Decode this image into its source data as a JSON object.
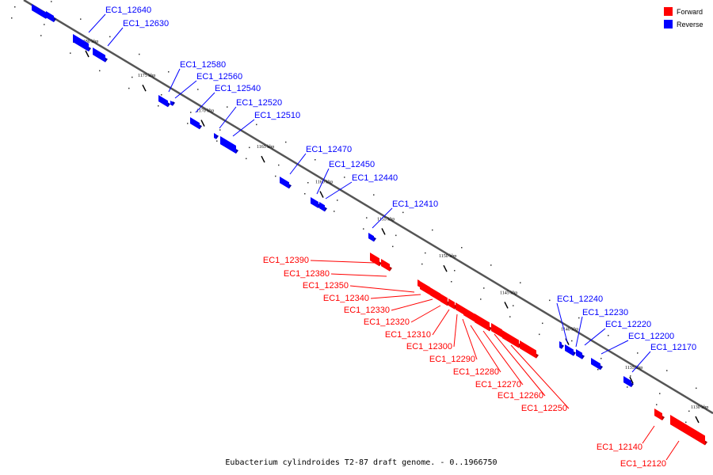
{
  "caption": "Eubacterium cylindroides T2-87 draft genome. - 0..1966750",
  "legend": [
    {
      "label": "Forward",
      "color": "#ff0000"
    },
    {
      "label": "Reverse",
      "color": "#0000ff"
    }
  ],
  "colors": {
    "forward": "#ff0000",
    "reverse": "#0000ff",
    "backbone": "#555555"
  },
  "ticks": [
    "1180 kbp",
    "1175 kbp",
    "1170 kbp",
    "1165 kbp",
    "1160 kbp",
    "1155 kbp",
    "1150 kbp",
    "1145 kbp",
    "1140 kbp",
    "1135 kbp",
    "1130 kbp"
  ],
  "reverse_genes": [
    "EC1_12640",
    "EC1_12630",
    "EC1_12580",
    "EC1_12560",
    "EC1_12540",
    "EC1_12520",
    "EC1_12510",
    "EC1_12470",
    "EC1_12450",
    "EC1_12440",
    "EC1_12410",
    "EC1_12240",
    "EC1_12230",
    "EC1_12220",
    "EC1_12200",
    "EC1_12170"
  ],
  "forward_genes": [
    "EC1_12390",
    "EC1_12380",
    "EC1_12350",
    "EC1_12340",
    "EC1_12330",
    "EC1_12320",
    "EC1_12310",
    "EC1_12300",
    "EC1_12290",
    "EC1_12280",
    "EC1_12270",
    "EC1_12260",
    "EC1_12250",
    "EC1_12140",
    "EC1_12120"
  ]
}
